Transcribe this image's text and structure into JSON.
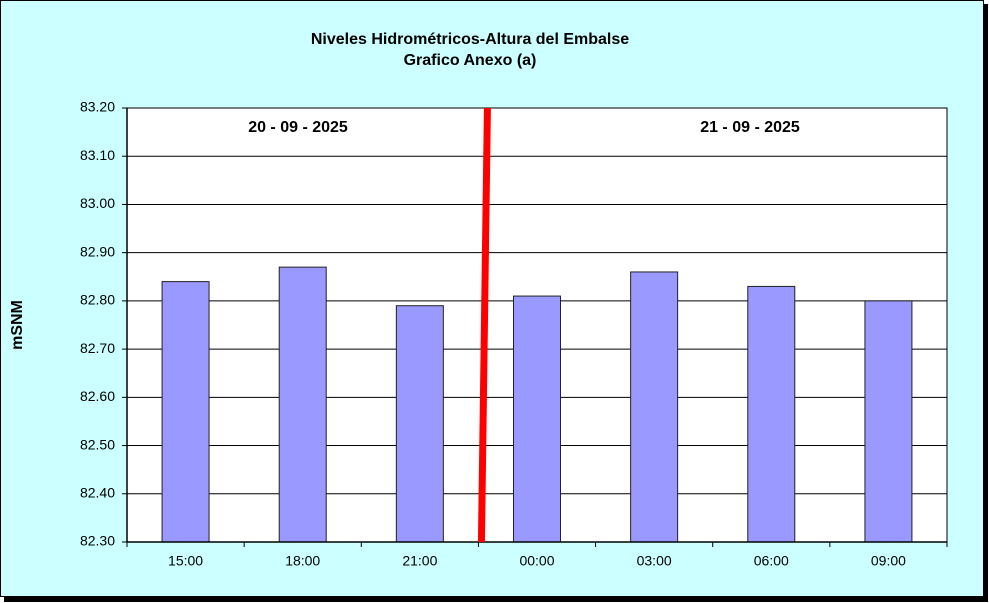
{
  "chart_data": {
    "type": "bar",
    "title": "Niveles Hidrométricos-Altura del Embalse",
    "subtitle": "Grafico Anexo (a)",
    "y_label": "mSNM",
    "annotations": [
      "20 - 09 - 2025",
      "21 - 09 - 2025"
    ],
    "categories": [
      "15:00",
      "18:00",
      "21:00",
      "00:00",
      "03:00",
      "06:00",
      "09:00"
    ],
    "values": [
      82.84,
      82.87,
      82.79,
      82.81,
      82.86,
      82.83,
      82.8
    ],
    "color": "#9999ff",
    "ylim": [
      82.3,
      83.2
    ],
    "yticks": [
      {
        "value": 82.3,
        "label": "82.30"
      },
      {
        "value": 82.4,
        "label": "82.40"
      },
      {
        "value": 82.5,
        "label": "82.50"
      },
      {
        "value": 82.6,
        "label": "82.60"
      },
      {
        "value": 82.7,
        "label": "82.70"
      },
      {
        "value": 82.8,
        "label": "82.80"
      },
      {
        "value": 82.9,
        "label": "82.90"
      },
      {
        "value": 83.0,
        "label": "83.00"
      },
      {
        "value": 83.1,
        "label": "83.10"
      },
      {
        "value": 83.2,
        "label": "83.20"
      }
    ],
    "grid": true
  }
}
